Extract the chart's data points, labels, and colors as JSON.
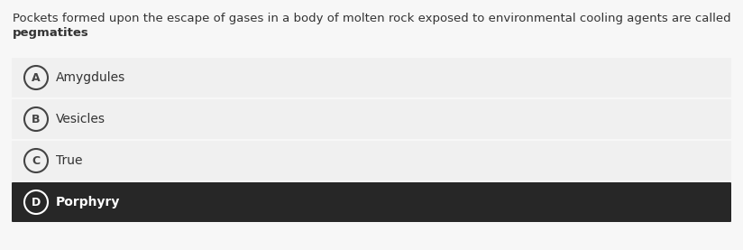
{
  "question_line1": "Pockets formed upon the escape of gases in a body of molten rock exposed to environmental cooling agents are called",
  "question_line2_bold": "pegmatites",
  "question_line2_suffix": ".",
  "options": [
    {
      "letter": "A",
      "text": "Amygdules",
      "selected": false
    },
    {
      "letter": "B",
      "text": "Vesicles",
      "selected": false
    },
    {
      "letter": "C",
      "text": "True",
      "selected": false
    },
    {
      "letter": "D",
      "text": "Porphyry",
      "selected": true
    }
  ],
  "bg_color": "#f7f7f7",
  "option_bg_normal": "#f0f0f0",
  "option_bg_selected": "#272727",
  "option_text_normal": "#333333",
  "option_text_selected": "#ffffff",
  "circle_edge_normal": "#444444",
  "circle_edge_selected": "#ffffff",
  "circle_face_normal": "none",
  "circle_face_selected": "none",
  "question_text_color": "#333333",
  "font_size_question": 9.5,
  "font_size_option": 10.0,
  "font_size_letter": 9.0
}
